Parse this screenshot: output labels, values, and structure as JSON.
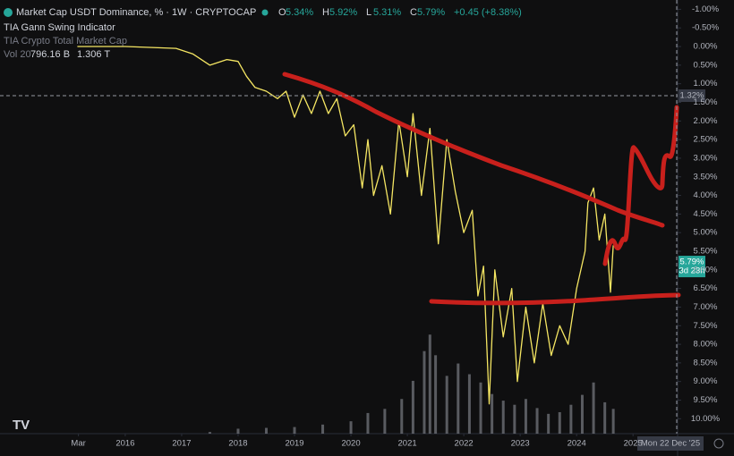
{
  "chart_data": {
    "type": "line",
    "title": "Market Cap USDT Dominance, % · 1W · CRYPTOCAP",
    "ohlc": [
      {
        "key": "O",
        "label": "5.34%"
      },
      {
        "key": "H",
        "label": "5.92%"
      },
      {
        "key": "L",
        "label": "5.31%"
      },
      {
        "key": "C",
        "label": "5.79%"
      }
    ],
    "change": "+0.45 (+8.38%)",
    "indicators": [
      "TIA Gann Swing Indicator",
      "TIA Crypto Total Market Cap"
    ],
    "volume_legend": {
      "label": "Vol 20",
      "values": [
        "796.16 B",
        "1.306 T"
      ]
    },
    "crosshair": {
      "value": 1.32,
      "label": "1.32%",
      "date": "Mon 22 Dec '25"
    },
    "last_price": {
      "value": 5.79,
      "label": "5.79%",
      "countdown": "3d 23h"
    },
    "color": "#f5e663",
    "x": [
      2015.15,
      2016.0,
      2016.9,
      2017.2,
      2017.5,
      2017.8,
      2018.0,
      2018.15,
      2018.3,
      2018.5,
      2018.7,
      2018.85,
      2019.0,
      2019.15,
      2019.3,
      2019.45,
      2019.6,
      2019.75,
      2019.9,
      2020.05,
      2020.2,
      2020.3,
      2020.4,
      2020.55,
      2020.7,
      2020.85,
      2021.0,
      2021.1,
      2021.25,
      2021.4,
      2021.55,
      2021.7,
      2021.85,
      2022.0,
      2022.15,
      2022.25,
      2022.35,
      2022.45,
      2022.55,
      2022.7,
      2022.85,
      2022.95,
      2023.1,
      2023.25,
      2023.4,
      2023.55,
      2023.7,
      2023.85,
      2024.0,
      2024.15,
      2024.2,
      2024.3,
      2024.4,
      2024.5,
      2024.6,
      2024.65
    ],
    "values": [
      0.0,
      0.0,
      0.05,
      0.2,
      0.5,
      0.35,
      0.4,
      0.8,
      1.1,
      1.2,
      1.4,
      1.2,
      1.9,
      1.3,
      1.8,
      1.2,
      1.8,
      1.4,
      2.4,
      2.1,
      3.8,
      2.5,
      4.0,
      3.2,
      4.5,
      2.0,
      3.5,
      1.8,
      4.0,
      2.2,
      5.3,
      2.5,
      3.9,
      5.0,
      4.4,
      6.7,
      5.9,
      9.6,
      6.0,
      7.8,
      6.5,
      9.0,
      7.0,
      8.5,
      6.9,
      8.3,
      7.5,
      8.0,
      6.5,
      5.5,
      4.2,
      3.8,
      5.2,
      4.5,
      6.6,
      5.34
    ],
    "volume": {
      "color": "#8a8d96",
      "x": [
        2017.5,
        2018.0,
        2018.5,
        2019.0,
        2019.5,
        2020.0,
        2020.3,
        2020.6,
        2020.9,
        2021.1,
        2021.3,
        2021.4,
        2021.5,
        2021.7,
        2021.9,
        2022.1,
        2022.3,
        2022.5,
        2022.7,
        2022.9,
        2023.1,
        2023.3,
        2023.5,
        2023.7,
        2023.9,
        2024.1,
        2024.3,
        2024.5,
        2024.65
      ],
      "values": [
        20,
        60,
        70,
        80,
        110,
        150,
        250,
        300,
        420,
        640,
        1000,
        1200,
        950,
        700,
        850,
        720,
        620,
        480,
        400,
        350,
        420,
        310,
        240,
        260,
        350,
        470,
        620,
        380,
        300
      ],
      "vlim": [
        0,
        1300
      ]
    },
    "xlim": [
      2013.78,
      2025.79
    ],
    "xticks": [
      {
        "value": 2015.17,
        "label": "Mar"
      },
      2016,
      2017,
      2018,
      2019,
      2020,
      2021,
      2022,
      2023,
      2024,
      2025
    ],
    "ylim": [
      10.4,
      -1.25
    ],
    "inverted": true,
    "yticks": [
      {
        "value": -1,
        "label": "-1.00%"
      },
      {
        "value": -0.5,
        "label": "-0.50%"
      },
      {
        "value": 0,
        "label": "0.00%"
      },
      {
        "value": 0.5,
        "label": "0.50%"
      },
      {
        "value": 1,
        "label": "1.00%"
      },
      {
        "value": 1.5,
        "label": "1.50%"
      },
      {
        "value": 2,
        "label": "2.00%"
      },
      {
        "value": 2.5,
        "label": "2.50%"
      },
      {
        "value": 3,
        "label": "3.00%"
      },
      {
        "value": 3.5,
        "label": "3.50%"
      },
      {
        "value": 4,
        "label": "4.00%"
      },
      {
        "value": 4.5,
        "label": "4.50%"
      },
      {
        "value": 5,
        "label": "5.00%"
      },
      {
        "value": 5.5,
        "label": "5.50%"
      },
      {
        "value": 6,
        "label": "6.00%"
      },
      {
        "value": 6.5,
        "label": "6.50%"
      },
      {
        "value": 7,
        "label": "7.00%"
      },
      {
        "value": 7.5,
        "label": "7.50%"
      },
      {
        "value": 8,
        "label": "8.00%"
      },
      {
        "value": 8.5,
        "label": "8.50%"
      },
      {
        "value": 9,
        "label": "9.00%"
      },
      {
        "value": 9.5,
        "label": "9.50%"
      },
      {
        "value": 10,
        "label": "10.00%"
      }
    ],
    "grid": false
  }
}
